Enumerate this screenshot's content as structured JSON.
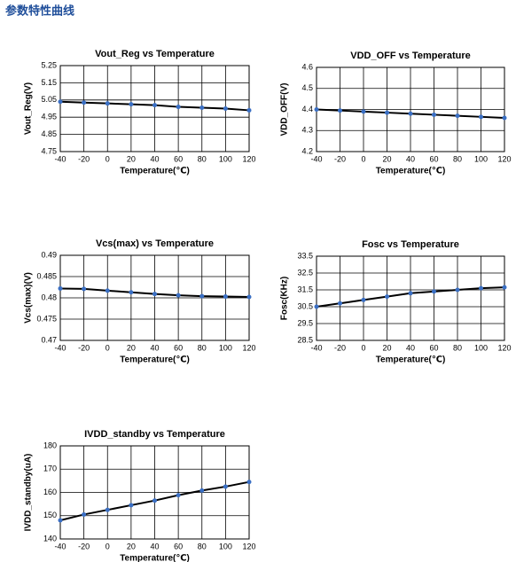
{
  "title": "参数特性曲线",
  "chart_data": [
    {
      "type": "line",
      "title": "Vout_Reg vs Temperature",
      "x_label": "Temperature(℃)",
      "y_label": "Vout_Reg(V)",
      "x": [
        -40,
        -20,
        0,
        20,
        40,
        60,
        80,
        100,
        120
      ],
      "values": [
        5.04,
        5.035,
        5.03,
        5.025,
        5.02,
        5.01,
        5.005,
        5.0,
        4.99
      ],
      "color": "#000000",
      "marker_color": "#3a6fc4",
      "xlim": [
        -40,
        120
      ],
      "xticks": [
        -40,
        -20,
        0,
        20,
        40,
        60,
        80,
        100,
        120
      ],
      "ylim": [
        4.75,
        5.25
      ],
      "yticks": [
        4.75,
        4.85,
        4.95,
        5.05,
        5.15,
        5.25
      ],
      "grid": true
    },
    {
      "type": "line",
      "title": "VDD_OFF vs Temperature",
      "x_label": "Temperature(℃)",
      "y_label": "VDD_OFF(V)",
      "x": [
        -40,
        -20,
        0,
        20,
        40,
        60,
        80,
        100,
        120
      ],
      "values": [
        4.4,
        4.395,
        4.39,
        4.385,
        4.38,
        4.375,
        4.37,
        4.365,
        4.36
      ],
      "color": "#000000",
      "marker_color": "#3a6fc4",
      "xlim": [
        -40,
        120
      ],
      "xticks": [
        -40,
        -20,
        0,
        20,
        40,
        60,
        80,
        100,
        120
      ],
      "ylim": [
        4.2,
        4.6
      ],
      "yticks": [
        4.2,
        4.3,
        4.4,
        4.5,
        4.6
      ],
      "grid": true
    },
    {
      "type": "line",
      "title": "Vcs(max) vs Temperature",
      "x_label": "Temperature(℃)",
      "y_label": "Vcs(max)(V)",
      "x": [
        -40,
        -20,
        0,
        20,
        40,
        60,
        80,
        100,
        120
      ],
      "values": [
        0.4822,
        0.4821,
        0.4817,
        0.4813,
        0.4809,
        0.4806,
        0.4804,
        0.4803,
        0.4802
      ],
      "color": "#000000",
      "marker_color": "#3a6fc4",
      "xlim": [
        -40,
        120
      ],
      "xticks": [
        -40,
        -20,
        0,
        20,
        40,
        60,
        80,
        100,
        120
      ],
      "ylim": [
        0.47,
        0.49
      ],
      "yticks": [
        0.47,
        0.475,
        0.48,
        0.485,
        0.49
      ],
      "grid": true
    },
    {
      "type": "line",
      "title": "Fosc vs Temperature",
      "x_label": "Temperature(℃)",
      "y_label": "Fosc(KHz)",
      "x": [
        -40,
        -20,
        0,
        20,
        40,
        60,
        80,
        100,
        120
      ],
      "values": [
        30.5,
        30.7,
        30.9,
        31.1,
        31.3,
        31.4,
        31.5,
        31.6,
        31.65
      ],
      "color": "#000000",
      "marker_color": "#3a6fc4",
      "xlim": [
        -40,
        120
      ],
      "xticks": [
        -40,
        -20,
        0,
        20,
        40,
        60,
        80,
        100,
        120
      ],
      "ylim": [
        28.5,
        33.5
      ],
      "yticks": [
        28.5,
        29.5,
        30.5,
        31.5,
        32.5,
        33.5
      ],
      "grid": true
    },
    {
      "type": "line",
      "title": "IVDD_standby vs Temperature",
      "x_label": "Temperature(℃)",
      "y_label": "IVDD_standby(uA)",
      "x": [
        -40,
        -20,
        0,
        20,
        40,
        60,
        80,
        100,
        120
      ],
      "values": [
        148,
        150.5,
        152.5,
        154.5,
        156.5,
        158.8,
        160.8,
        162.5,
        164.5
      ],
      "color": "#000000",
      "marker_color": "#3a6fc4",
      "xlim": [
        -40,
        120
      ],
      "xticks": [
        -40,
        -20,
        0,
        20,
        40,
        60,
        80,
        100,
        120
      ],
      "ylim": [
        140,
        180
      ],
      "yticks": [
        140,
        150,
        160,
        170,
        180
      ],
      "grid": true
    }
  ]
}
